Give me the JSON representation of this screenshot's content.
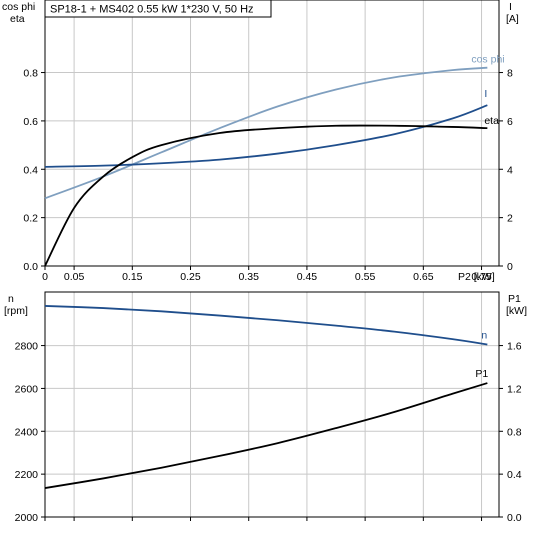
{
  "title": "SP18-1 + MS402   0.55 kW   1*230 V, 50 Hz",
  "colors": {
    "cos_phi": "#7f9fbf",
    "current": "#1f4e8c",
    "eta": "#000000",
    "speed": "#1f4e8c",
    "p1": "#000000",
    "grid": "#c8c8c8",
    "frame": "#000000"
  },
  "chart_data": [
    {
      "type": "line",
      "x_axis": {
        "label": "P2 [kW]",
        "range": [
          0,
          0.78
        ],
        "ticks": [
          "0",
          "0.05",
          "0.15",
          "0.25",
          "0.35",
          "0.45",
          "0.55",
          "0.65",
          "0.75"
        ],
        "tick_values": [
          0,
          0.05,
          0.15,
          0.25,
          0.35,
          0.45,
          0.55,
          0.65,
          0.75
        ]
      },
      "y_left": {
        "label_top": "cos phi",
        "label_bottom": "eta",
        "range": [
          0,
          1.1
        ],
        "ticks": [
          "0.0",
          "0.2",
          "0.4",
          "0.6",
          "0.8"
        ],
        "tick_values": [
          0,
          0.2,
          0.4,
          0.6,
          0.8
        ]
      },
      "y_right": {
        "label_top": "I",
        "label_bottom": "[A]",
        "range": [
          0,
          11
        ],
        "ticks": [
          "0",
          "2",
          "4",
          "6",
          "8"
        ],
        "tick_values": [
          0,
          2,
          4,
          6,
          8
        ]
      },
      "grid": true,
      "series": [
        {
          "name": "cos phi",
          "axis": "left",
          "x": [
            0,
            0.1,
            0.2,
            0.3,
            0.4,
            0.5,
            0.6,
            0.7,
            0.76
          ],
          "values": [
            0.28,
            0.37,
            0.47,
            0.57,
            0.66,
            0.73,
            0.78,
            0.81,
            0.82
          ]
        },
        {
          "name": "I",
          "axis": "right",
          "x": [
            0,
            0.1,
            0.2,
            0.3,
            0.4,
            0.5,
            0.6,
            0.7,
            0.76
          ],
          "values": [
            4.1,
            4.15,
            4.25,
            4.4,
            4.65,
            5.0,
            5.45,
            6.1,
            6.65
          ]
        },
        {
          "name": "eta",
          "axis": "left",
          "x": [
            0,
            0.05,
            0.1,
            0.15,
            0.2,
            0.3,
            0.4,
            0.5,
            0.6,
            0.7,
            0.76
          ],
          "values": [
            0.0,
            0.24,
            0.37,
            0.45,
            0.5,
            0.55,
            0.57,
            0.58,
            0.58,
            0.575,
            0.57
          ]
        }
      ]
    },
    {
      "type": "line",
      "x_axis": {
        "range": [
          0,
          0.78
        ],
        "tick_values": [
          0,
          0.05,
          0.15,
          0.25,
          0.35,
          0.45,
          0.55,
          0.65,
          0.75
        ]
      },
      "y_left": {
        "label_top": "n",
        "label_bottom": "[rpm]",
        "range": [
          2000,
          3050
        ],
        "ticks": [
          "2000",
          "2200",
          "2400",
          "2600",
          "2800"
        ],
        "tick_values": [
          2000,
          2200,
          2400,
          2600,
          2800
        ]
      },
      "y_right": {
        "label_top": "P1",
        "label_bottom": "[kW]",
        "range": [
          0,
          2.1
        ],
        "ticks": [
          "0.0",
          "0.4",
          "0.8",
          "1.2",
          "1.6"
        ],
        "tick_values": [
          0,
          0.4,
          0.8,
          1.2,
          1.6
        ]
      },
      "grid": true,
      "series": [
        {
          "name": "n",
          "axis": "left",
          "x": [
            0,
            0.1,
            0.2,
            0.3,
            0.4,
            0.5,
            0.6,
            0.7,
            0.76
          ],
          "values": [
            2985,
            2975,
            2960,
            2940,
            2918,
            2893,
            2865,
            2830,
            2805
          ]
        },
        {
          "name": "P1",
          "axis": "right",
          "x": [
            0,
            0.1,
            0.2,
            0.3,
            0.4,
            0.5,
            0.6,
            0.7,
            0.76
          ],
          "values": [
            0.27,
            0.36,
            0.46,
            0.57,
            0.69,
            0.83,
            0.98,
            1.15,
            1.25
          ]
        }
      ]
    }
  ]
}
